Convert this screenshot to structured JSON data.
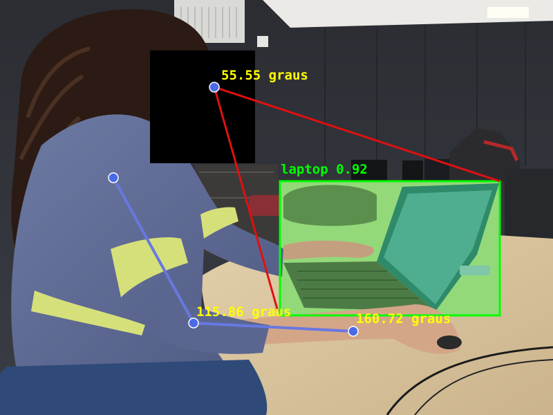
{
  "detections": [
    {
      "label_text": "laptop 0.92",
      "class": "laptop",
      "confidence": 0.92,
      "box_color": "#00ff00"
    }
  ],
  "angles": {
    "head": {
      "text": "55.55 graus",
      "value_deg": 55.55
    },
    "elbow": {
      "text": "115.86 graus",
      "value_deg": 115.86
    },
    "wrist": {
      "text": "160.72 graus",
      "value_deg": 160.72
    }
  },
  "colors": {
    "angle_text": "#ffff00",
    "pose_line_red": "#e01010",
    "pose_line_blue": "#6878e0",
    "keypoint": "#4a6ae8",
    "face_mask": "#000000"
  }
}
